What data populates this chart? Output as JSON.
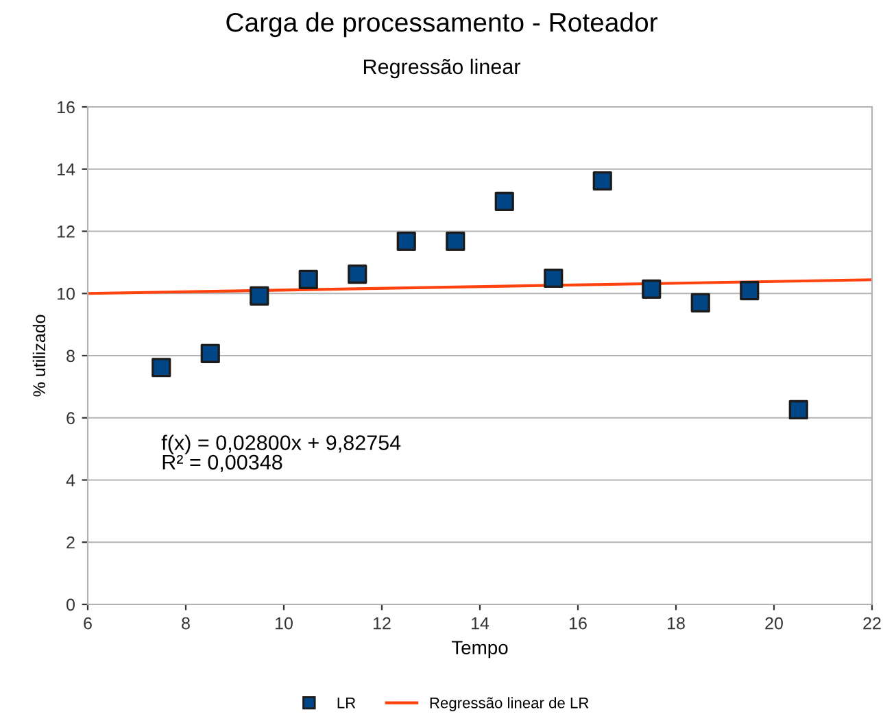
{
  "chart_data": {
    "type": "scatter",
    "title": "Carga de processamento - Roteador",
    "subtitle": "Regressão linear",
    "xlabel": "Tempo",
    "ylabel": "% utilizado",
    "x": [
      7.5,
      8.5,
      9.5,
      10.5,
      11.5,
      12.5,
      13.5,
      14.5,
      15.5,
      16.5,
      17.5,
      18.5,
      19.5,
      20.5
    ],
    "series": [
      {
        "name": "LR",
        "color": "#004586",
        "marker": "square",
        "values": [
          7.62,
          8.07,
          9.92,
          10.45,
          10.62,
          11.68,
          11.68,
          12.96,
          10.49,
          13.62,
          10.14,
          9.7,
          10.09,
          6.26
        ]
      },
      {
        "name": "Regressão linear de LR",
        "type": "line",
        "color": "#ff420e",
        "x": [
          6,
          22
        ],
        "values": [
          10.0,
          10.44
        ],
        "line_style": "solid"
      }
    ],
    "xlim": [
      6,
      22
    ],
    "xticks": [
      6,
      8,
      10,
      12,
      14,
      16,
      18,
      20,
      22
    ],
    "ylim": [
      0,
      16
    ],
    "yticks": [
      0,
      2,
      4,
      6,
      8,
      10,
      12,
      14,
      16
    ],
    "grid": "y",
    "legend": "bottom",
    "annotations": [
      "f(x) = 0,02800x + 9,82754\nR² = 0,00348"
    ]
  }
}
